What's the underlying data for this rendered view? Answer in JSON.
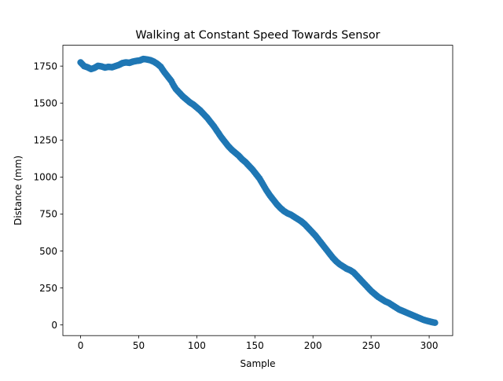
{
  "chart_data": {
    "type": "scatter",
    "title": "Walking at Constant Speed Towards Sensor",
    "xlabel": "Sample",
    "ylabel": "Distance (mm)",
    "xlim": [
      -15.25,
      320.25
    ],
    "ylim": [
      -72,
      1891
    ],
    "x_ticks": [
      0,
      50,
      100,
      150,
      200,
      250,
      300
    ],
    "y_ticks": [
      0,
      250,
      500,
      750,
      1000,
      1250,
      1500,
      1750
    ],
    "grid": false,
    "legend": "none",
    "marker_color": "#1f77b4",
    "series": [
      {
        "anchors": [
          [
            0,
            1775
          ],
          [
            3,
            1750
          ],
          [
            6,
            1742
          ],
          [
            9,
            1730
          ],
          [
            12,
            1738
          ],
          [
            15,
            1752
          ],
          [
            18,
            1748
          ],
          [
            21,
            1740
          ],
          [
            24,
            1745
          ],
          [
            27,
            1742
          ],
          [
            30,
            1750
          ],
          [
            33,
            1758
          ],
          [
            36,
            1770
          ],
          [
            39,
            1775
          ],
          [
            42,
            1772
          ],
          [
            45,
            1780
          ],
          [
            48,
            1785
          ],
          [
            51,
            1788
          ],
          [
            54,
            1798
          ],
          [
            57,
            1795
          ],
          [
            60,
            1790
          ],
          [
            63,
            1780
          ],
          [
            66,
            1765
          ],
          [
            69,
            1745
          ],
          [
            72,
            1710
          ],
          [
            75,
            1680
          ],
          [
            78,
            1650
          ],
          [
            80,
            1620
          ],
          [
            82,
            1595
          ],
          [
            85,
            1570
          ],
          [
            88,
            1545
          ],
          [
            91,
            1525
          ],
          [
            94,
            1505
          ],
          [
            97,
            1490
          ],
          [
            100,
            1470
          ],
          [
            103,
            1450
          ],
          [
            106,
            1425
          ],
          [
            109,
            1400
          ],
          [
            112,
            1370
          ],
          [
            115,
            1340
          ],
          [
            118,
            1305
          ],
          [
            121,
            1270
          ],
          [
            124,
            1240
          ],
          [
            127,
            1210
          ],
          [
            130,
            1185
          ],
          [
            133,
            1165
          ],
          [
            136,
            1145
          ],
          [
            139,
            1120
          ],
          [
            142,
            1100
          ],
          [
            145,
            1075
          ],
          [
            148,
            1050
          ],
          [
            151,
            1020
          ],
          [
            154,
            990
          ],
          [
            157,
            950
          ],
          [
            160,
            910
          ],
          [
            163,
            875
          ],
          [
            166,
            845
          ],
          [
            169,
            815
          ],
          [
            172,
            790
          ],
          [
            175,
            770
          ],
          [
            178,
            755
          ],
          [
            181,
            745
          ],
          [
            184,
            730
          ],
          [
            187,
            715
          ],
          [
            190,
            700
          ],
          [
            193,
            680
          ],
          [
            196,
            655
          ],
          [
            199,
            630
          ],
          [
            202,
            605
          ],
          [
            205,
            575
          ],
          [
            208,
            545
          ],
          [
            211,
            515
          ],
          [
            214,
            485
          ],
          [
            217,
            455
          ],
          [
            220,
            430
          ],
          [
            223,
            410
          ],
          [
            226,
            395
          ],
          [
            229,
            380
          ],
          [
            232,
            370
          ],
          [
            235,
            355
          ],
          [
            238,
            330
          ],
          [
            241,
            305
          ],
          [
            244,
            280
          ],
          [
            247,
            255
          ],
          [
            250,
            230
          ],
          [
            253,
            210
          ],
          [
            256,
            190
          ],
          [
            259,
            175
          ],
          [
            262,
            160
          ],
          [
            265,
            150
          ],
          [
            268,
            135
          ],
          [
            271,
            120
          ],
          [
            274,
            105
          ],
          [
            277,
            95
          ],
          [
            280,
            85
          ],
          [
            283,
            75
          ],
          [
            286,
            65
          ],
          [
            289,
            55
          ],
          [
            292,
            45
          ],
          [
            295,
            35
          ],
          [
            298,
            28
          ],
          [
            301,
            22
          ],
          [
            303,
            18
          ],
          [
            305,
            15
          ]
        ]
      }
    ]
  }
}
